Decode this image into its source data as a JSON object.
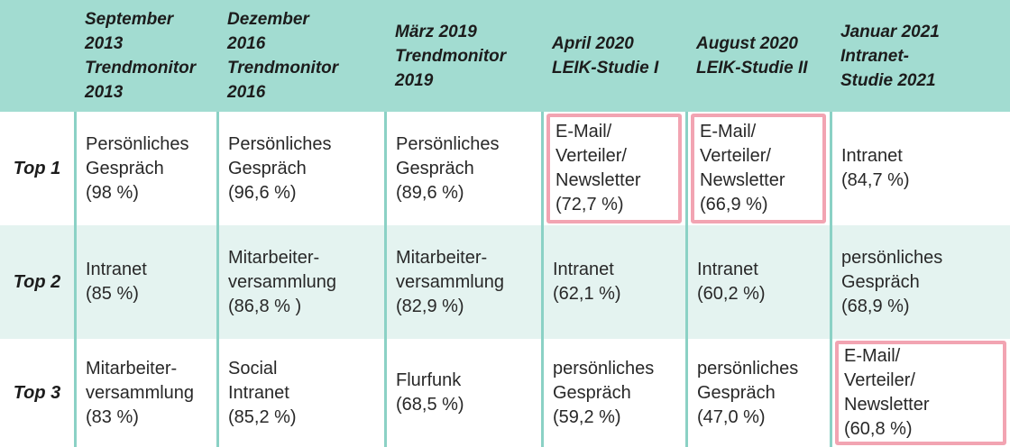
{
  "colors": {
    "header_bg": "#a2dcd1",
    "row_alt_bg": "#e4f3f0",
    "grid_line": "#8bd1c5",
    "highlight_border": "#f2a4b2",
    "header_text": "#1c1c1c",
    "body_text": "#282828"
  },
  "table": {
    "header": [
      {
        "text": ""
      },
      {
        "text": "September\n2013\nTrendmonitor\n2013"
      },
      {
        "text": "Dezember\n2016\nTrendmonitor\n2016"
      },
      {
        "text": "März 2019\nTrendmonitor\n2019"
      },
      {
        "text": "April 2020\nLEIK-Studie I"
      },
      {
        "text": "August 2020\nLEIK-Studie II"
      },
      {
        "text": "Januar 2021\nIntranet-\nStudie 2021"
      }
    ],
    "rows": [
      {
        "label": "Top 1",
        "cells": [
          {
            "text": "Persönliches\nGespräch\n(98 %)",
            "highlighted": false
          },
          {
            "text": "Persönliches\nGespräch\n(96,6 %)",
            "highlighted": false
          },
          {
            "text": "Persönliches\nGespräch\n(89,6 %)",
            "highlighted": false
          },
          {
            "text": "E-Mail/\nVerteiler/\nNewsletter\n(72,7 %)",
            "highlighted": true
          },
          {
            "text": "E-Mail/\nVerteiler/\nNewsletter\n(66,9 %)",
            "highlighted": true
          },
          {
            "text": "Intranet\n(84,7 %)",
            "highlighted": false
          }
        ]
      },
      {
        "label": "Top 2",
        "cells": [
          {
            "text": "Intranet\n(85 %)",
            "highlighted": false
          },
          {
            "text": "Mitarbeiter-\nversammlung\n(86,8 % )",
            "highlighted": false
          },
          {
            "text": "Mitarbeiter-\nversammlung\n(82,9 %)",
            "highlighted": false
          },
          {
            "text": "Intranet\n(62,1 %)",
            "highlighted": false
          },
          {
            "text": "Intranet\n(60,2 %)",
            "highlighted": false
          },
          {
            "text": "persönliches\nGespräch\n(68,9 %)",
            "highlighted": false
          }
        ]
      },
      {
        "label": "Top 3",
        "cells": [
          {
            "text": "Mitarbeiter-\nversammlung\n(83 %)",
            "highlighted": false
          },
          {
            "text": "Social\nIntranet\n(85,2 %)",
            "highlighted": false
          },
          {
            "text": "Flurfunk\n(68,5 %)",
            "highlighted": false
          },
          {
            "text": "persönliches\nGespräch\n(59,2 %)",
            "highlighted": false
          },
          {
            "text": "persönliches\nGespräch\n(47,0 %)",
            "highlighted": false
          },
          {
            "text": "E-Mail/\nVerteiler/\nNewsletter\n(60,8 %)",
            "highlighted": true
          }
        ]
      }
    ]
  },
  "chart_data": {
    "type": "table",
    "title": "",
    "columns": [
      "September 2013 Trendmonitor 2013",
      "Dezember 2016 Trendmonitor 2016",
      "März 2019 Trendmonitor 2019",
      "April 2020 LEIK-Studie I",
      "August 2020 LEIK-Studie II",
      "Januar 2021 Intranet-Studie 2021"
    ],
    "row_labels": [
      "Top 1",
      "Top 2",
      "Top 3"
    ],
    "rows": [
      [
        {
          "channel": "Persönliches Gespräch",
          "percent": 98
        },
        {
          "channel": "Persönliches Gespräch",
          "percent": 96.6
        },
        {
          "channel": "Persönliches Gespräch",
          "percent": 89.6
        },
        {
          "channel": "E-Mail/Verteiler/Newsletter",
          "percent": 72.7,
          "highlighted": true
        },
        {
          "channel": "E-Mail/Verteiler/Newsletter",
          "percent": 66.9,
          "highlighted": true
        },
        {
          "channel": "Intranet",
          "percent": 84.7
        }
      ],
      [
        {
          "channel": "Intranet",
          "percent": 85
        },
        {
          "channel": "Mitarbeiterversammlung",
          "percent": 86.8
        },
        {
          "channel": "Mitarbeiterversammlung",
          "percent": 82.9
        },
        {
          "channel": "Intranet",
          "percent": 62.1
        },
        {
          "channel": "Intranet",
          "percent": 60.2
        },
        {
          "channel": "persönliches Gespräch",
          "percent": 68.9
        }
      ],
      [
        {
          "channel": "Mitarbeiterversammlung",
          "percent": 83
        },
        {
          "channel": "Social Intranet",
          "percent": 85.2
        },
        {
          "channel": "Flurfunk",
          "percent": 68.5
        },
        {
          "channel": "persönliches Gespräch",
          "percent": 59.2
        },
        {
          "channel": "persönliches Gespräch",
          "percent": 47.0
        },
        {
          "channel": "E-Mail/Verteiler/Newsletter",
          "percent": 60.8,
          "highlighted": true
        }
      ]
    ],
    "notes": "Pink boxes highlight E-Mail/Verteiler/Newsletter entries; legend absent; grid lines teal"
  }
}
